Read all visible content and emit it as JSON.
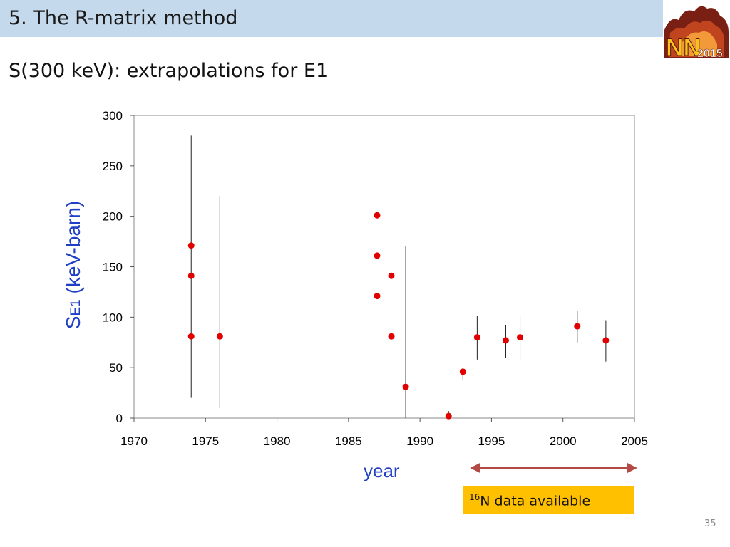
{
  "slide": {
    "title": "5. The R-matrix method",
    "subtitle": "S(300 keV): extrapolations for E1",
    "page_number": "35",
    "logo_text": "NN 2015"
  },
  "annotation": {
    "mass_number": "16",
    "text": "N data available",
    "arrow_from_year": 1993,
    "arrow_to_year": 2005
  },
  "colors": {
    "title_bar": "#c5d9ec",
    "axis_label": "#1f3fc4",
    "marker": "#e00000",
    "note_box": "#ffc000",
    "arrow": "#b34a45"
  },
  "chart_data": {
    "type": "scatter",
    "xlabel": "year",
    "ylabel_main": "S",
    "ylabel_sub": "E1",
    "ylabel_unit": " (keV-barn)",
    "xlim": [
      1970,
      2005
    ],
    "ylim": [
      0,
      300
    ],
    "x_ticks": [
      1970,
      1975,
      1980,
      1985,
      1990,
      1995,
      2000,
      2005
    ],
    "y_ticks": [
      0,
      50,
      100,
      150,
      200,
      250,
      300
    ],
    "grid": false,
    "points": [
      {
        "x": 1974,
        "y": 171
      },
      {
        "x": 1974,
        "y": 141
      },
      {
        "x": 1974,
        "y": 81
      },
      {
        "x": 1976,
        "y": 81
      },
      {
        "x": 1987,
        "y": 201
      },
      {
        "x": 1987,
        "y": 161
      },
      {
        "x": 1987,
        "y": 121
      },
      {
        "x": 1988,
        "y": 141
      },
      {
        "x": 1988,
        "y": 81
      },
      {
        "x": 1989,
        "y": 31
      },
      {
        "x": 1992,
        "y": 2
      },
      {
        "x": 1993,
        "y": 46
      },
      {
        "x": 1994,
        "y": 80
      },
      {
        "x": 1996,
        "y": 77
      },
      {
        "x": 1997,
        "y": 80
      },
      {
        "x": 2001,
        "y": 91
      },
      {
        "x": 2003,
        "y": 77
      }
    ],
    "error_bars": [
      {
        "x": 1974,
        "low": 20,
        "high": 280
      },
      {
        "x": 1976,
        "low": 10,
        "high": 220
      },
      {
        "x": 1989,
        "low": 0,
        "high": 170
      },
      {
        "x": 1992,
        "low": 0,
        "high": 7
      },
      {
        "x": 1993,
        "low": 38,
        "high": 50
      },
      {
        "x": 1994,
        "low": 58,
        "high": 101
      },
      {
        "x": 1996,
        "low": 60,
        "high": 92
      },
      {
        "x": 1997,
        "low": 58,
        "high": 101
      },
      {
        "x": 2001,
        "low": 75,
        "high": 106
      },
      {
        "x": 2003,
        "low": 56,
        "high": 97
      }
    ]
  }
}
